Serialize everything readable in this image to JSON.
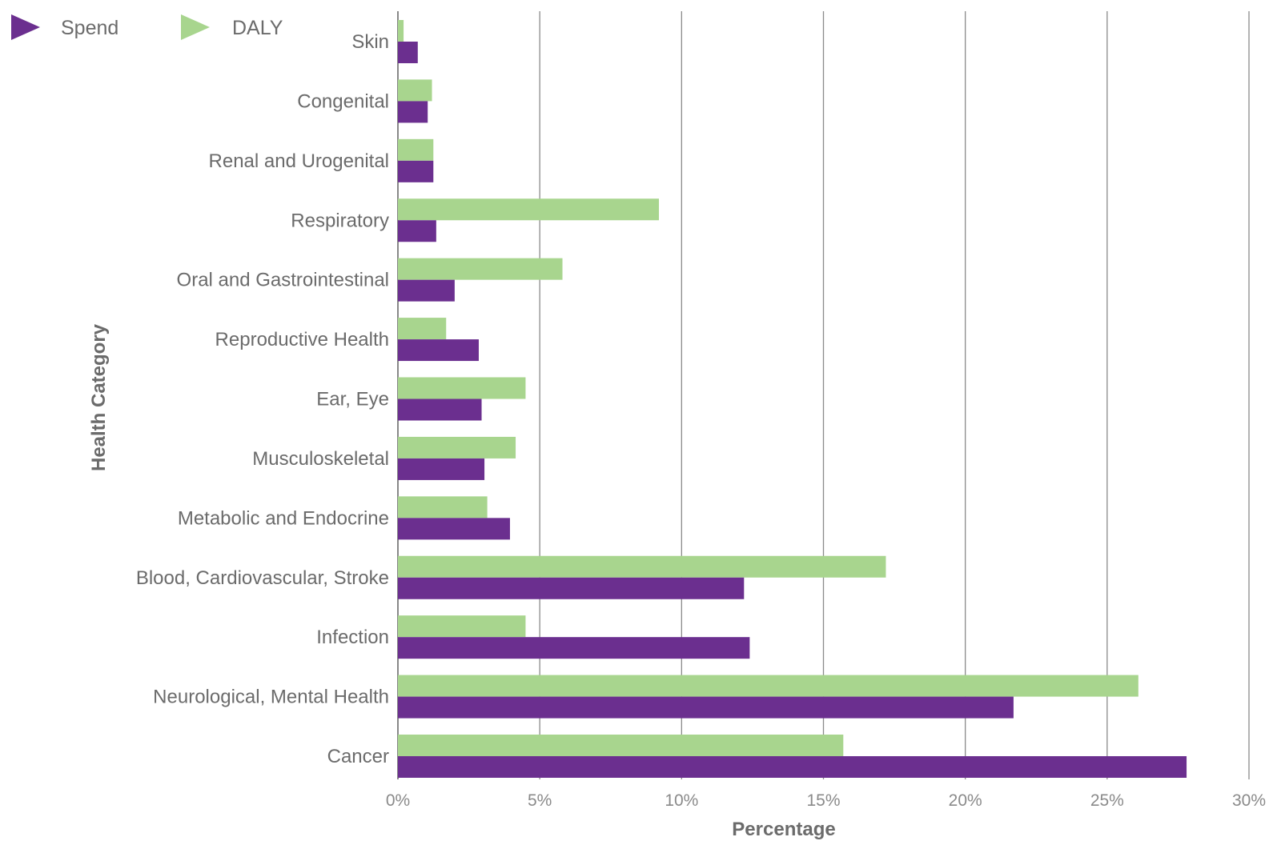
{
  "chart_data": {
    "type": "bar",
    "orientation": "horizontal",
    "categories": [
      "Skin",
      "Congenital",
      "Renal and Urogenital",
      "Respiratory",
      "Oral and Gastrointestinal",
      "Reproductive Health",
      "Ear, Eye",
      "Musculoskeletal",
      "Metabolic and Endocrine",
      "Blood, Cardiovascular, Stroke",
      "Infection",
      "Neurological, Mental Health",
      "Cancer"
    ],
    "series": [
      {
        "name": "DALY",
        "color": "#a8d58e",
        "values": [
          0.2,
          1.2,
          1.25,
          9.2,
          5.8,
          1.7,
          4.5,
          4.15,
          3.15,
          17.2,
          4.5,
          26.1,
          15.7
        ]
      },
      {
        "name": "Spend",
        "color": "#6b2f8f",
        "values": [
          0.7,
          1.05,
          1.25,
          1.35,
          2.0,
          2.85,
          2.95,
          3.05,
          3.95,
          12.2,
          12.4,
          21.7,
          27.8
        ]
      }
    ],
    "xlabel": "Percentage",
    "ylabel": "Health Category",
    "xlim": [
      0,
      30
    ],
    "xticks": [
      "0%",
      "5%",
      "10%",
      "15%",
      "20%",
      "25%",
      "30%"
    ],
    "grid": "vertical",
    "legend": "top-left"
  },
  "colors": {
    "gridline": "#8a8a8a",
    "axis": "#6b6b6b"
  }
}
